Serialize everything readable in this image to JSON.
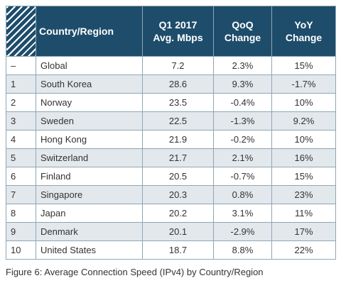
{
  "chart_data": {
    "type": "table",
    "columns": [
      "",
      "Country/Region",
      "Q1 2017\nAvg. Mbps",
      "QoQ\nChange",
      "YoY\nChange"
    ],
    "rows": [
      [
        "–",
        "Global",
        "7.2",
        "2.3%",
        "15%"
      ],
      [
        "1",
        "South Korea",
        "28.6",
        "9.3%",
        "-1.7%"
      ],
      [
        "2",
        "Norway",
        "23.5",
        "-0.4%",
        "10%"
      ],
      [
        "3",
        "Sweden",
        "22.5",
        "-1.3%",
        "9.2%"
      ],
      [
        "4",
        "Hong Kong",
        "21.9",
        "-0.2%",
        "10%"
      ],
      [
        "5",
        "Switzerland",
        "21.7",
        "2.1%",
        "16%"
      ],
      [
        "6",
        "Finland",
        "20.5",
        "-0.7%",
        "15%"
      ],
      [
        "7",
        "Singapore",
        "20.3",
        "0.8%",
        "23%"
      ],
      [
        "8",
        "Japan",
        "20.2",
        "3.1%",
        "11%"
      ],
      [
        "9",
        "Denmark",
        "20.1",
        "-2.9%",
        "17%"
      ],
      [
        "10",
        "United States",
        "18.7",
        "8.8%",
        "22%"
      ]
    ],
    "header_color": "#1e4d6b",
    "stripe_color": "#e3e8ec"
  },
  "caption": "Figure 6: Average Connection Speed (IPv4) by Country/Region"
}
